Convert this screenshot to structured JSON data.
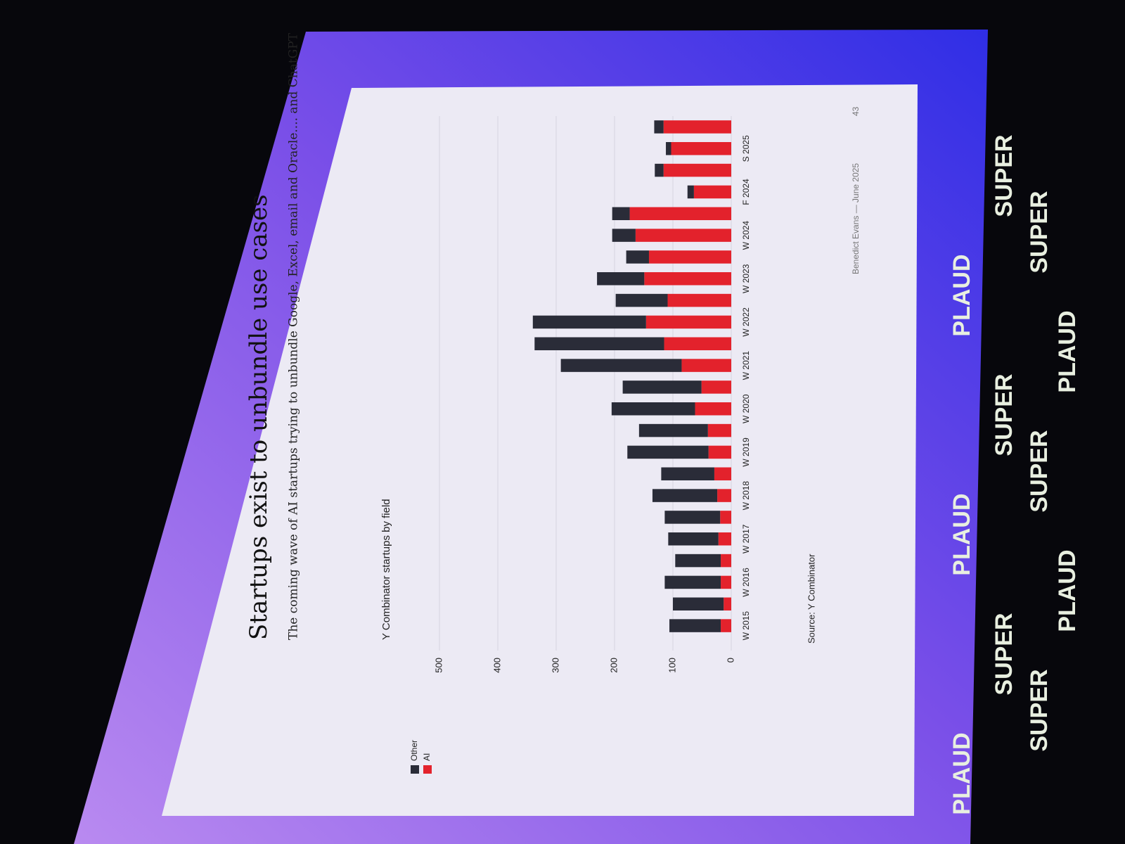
{
  "chart_data": {
    "type": "bar",
    "stacked": true,
    "title": "Startups exist to unbundle use cases",
    "subtitle": "The coming wave of AI startups trying to unbundle Google, Excel, email and Oracle.... and ChatGPT",
    "y_axis_title": "Y Combinator startups by field",
    "source": "Source: Y Combinator",
    "footer": "Benedict Evans — June 2025",
    "page_number": "43",
    "categories": [
      "W 2015",
      null,
      "W 2016",
      null,
      "W 2017",
      null,
      "W 2018",
      null,
      "W 2019",
      null,
      "W 2020",
      null,
      "W 2021",
      null,
      "W 2022",
      null,
      "W 2023",
      null,
      "W 2024",
      null,
      "F 2024",
      null,
      "S 2025",
      null
    ],
    "series": [
      {
        "name": "AI",
        "color": "#e3222c",
        "values": [
          18,
          13,
          18,
          18,
          22,
          19,
          24,
          29,
          39,
          40,
          62,
          51,
          85,
          115,
          146,
          109,
          149,
          141,
          164,
          174,
          64,
          116,
          103,
          116
        ]
      },
      {
        "name": "Other",
        "color": "#2a2c38",
        "values": [
          88,
          87,
          96,
          78,
          86,
          95,
          111,
          91,
          139,
          118,
          143,
          135,
          207,
          222,
          194,
          89,
          81,
          39,
          40,
          30,
          11,
          15,
          9,
          16
        ]
      }
    ],
    "ylim": [
      0,
      500
    ],
    "yticks": [
      0,
      100,
      200,
      300,
      400,
      500
    ],
    "grid": true,
    "legend": "top-left"
  },
  "backdrop": {
    "logos": [
      "PLAUD",
      "SUPER"
    ]
  }
}
